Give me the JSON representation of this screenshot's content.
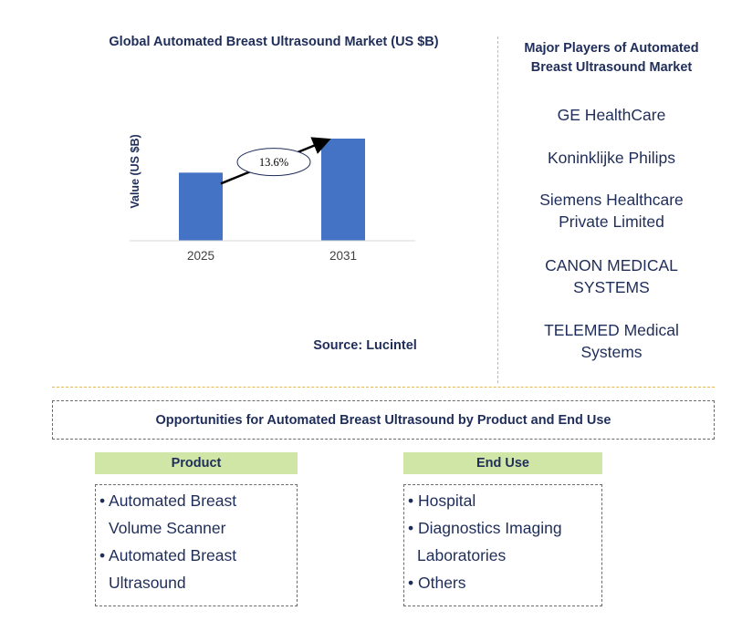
{
  "chart_data": {
    "type": "bar",
    "title": "Global Automated Breast Ultrasound Market (US $B)",
    "ylabel": "Value (US $B)",
    "categories": [
      "2025",
      "2031"
    ],
    "values": [
      1.0,
      1.5
    ],
    "annotation": "13.6%",
    "colors": {
      "bar": "#4472c4"
    }
  },
  "source": "Source: Lucintel",
  "players": {
    "title_lines": [
      "Major Players of Automated",
      "Breast Ultrasound Market"
    ],
    "items": [
      [
        "GE HealthCare"
      ],
      [
        "Koninklijke Philips"
      ],
      [
        "Siemens Healthcare",
        "Private Limited"
      ],
      [
        "CANON MEDICAL",
        "SYSTEMS"
      ],
      [
        "TELEMED Medical",
        "Systems"
      ]
    ]
  },
  "opportunities": {
    "title": "Opportunities for Automated Breast Ultrasound by Product and End Use",
    "product": {
      "header": "Product",
      "lines": [
        "• Automated Breast",
        "Volume Scanner",
        "• Automated Breast",
        "Ultrasound"
      ]
    },
    "end_use": {
      "header": "End Use",
      "lines": [
        "• Hospital",
        "• Diagnostics Imaging",
        "Laboratories",
        "• Others"
      ]
    }
  },
  "colors": {
    "accent_line": "#e8b84a",
    "header_bg": "#cfe6a6",
    "text": "#1f2d5a"
  }
}
